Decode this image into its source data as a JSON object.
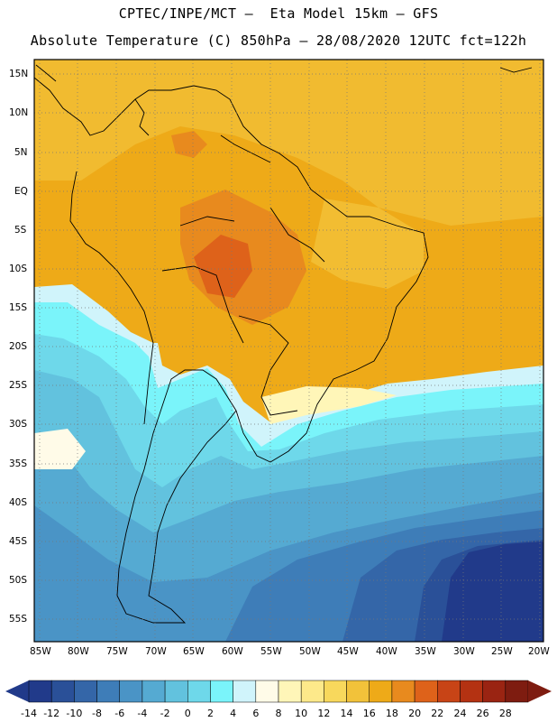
{
  "header": {
    "line1": "CPTEC/INPE/MCT –  Eta Model 15km – GFS",
    "line2": "Absolute Temperature (C) 850hPa – 28/08/2020 12UTC fct=122h"
  },
  "map": {
    "lat_ticks": [
      "15N",
      "10N",
      "5N",
      "EQ",
      "5S",
      "10S",
      "15S",
      "20S",
      "25S",
      "30S",
      "35S",
      "40S",
      "45S",
      "50S",
      "55S"
    ],
    "lon_ticks": [
      "85W",
      "80W",
      "75W",
      "70W",
      "65W",
      "60W",
      "55W",
      "50W",
      "45W",
      "40W",
      "35W",
      "30W",
      "25W",
      "20W"
    ],
    "lat_range": [
      -58,
      16.5
    ],
    "lon_range": [
      -86,
      -20
    ]
  },
  "colorbar": {
    "labels": [
      "-14",
      "-12",
      "-10",
      "-8",
      "-6",
      "-4",
      "-2",
      "0",
      "2",
      "4",
      "6",
      "8",
      "10",
      "12",
      "14",
      "16",
      "18",
      "20",
      "22",
      "24",
      "26",
      "28"
    ],
    "colors": [
      "#213a8a",
      "#2a5098",
      "#3466a8",
      "#3e7db8",
      "#4a94c6",
      "#55aad2",
      "#62c2de",
      "#6ed8ea",
      "#7af4fa",
      "#d0f4fb",
      "#fffbe8",
      "#fff6b8",
      "#fde98a",
      "#f8d85c",
      "#f2c23a",
      "#eeaa18",
      "#e88a1e",
      "#de621a",
      "#c84416",
      "#b43212",
      "#9a2412",
      "#7e1c10"
    ],
    "left_arrow": "#213a8a",
    "right_arrow": "#7e1c10"
  }
}
